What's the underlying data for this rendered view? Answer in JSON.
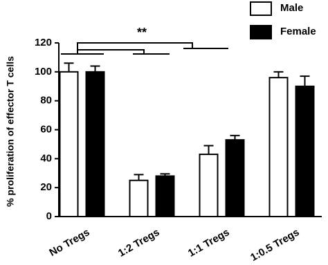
{
  "chart_data": {
    "type": "bar",
    "y_label": "% proliferation of effector T cells",
    "categories": [
      "No Tregs",
      "1:2 Tregs",
      "1:1 Tregs",
      "1:0.5 Tregs"
    ],
    "series": [
      {
        "name": "Male",
        "color": "#ffffff",
        "values": [
          100,
          25,
          43,
          96
        ],
        "errors": [
          6,
          4,
          6,
          4
        ]
      },
      {
        "name": "Female",
        "color": "#000000",
        "values": [
          100,
          28,
          53,
          90
        ],
        "errors": [
          4,
          1.5,
          3,
          7
        ]
      }
    ],
    "annotation": "**",
    "ylim": [
      0,
      120
    ],
    "yticks": [
      0,
      20,
      40,
      60,
      80,
      100,
      120
    ]
  }
}
